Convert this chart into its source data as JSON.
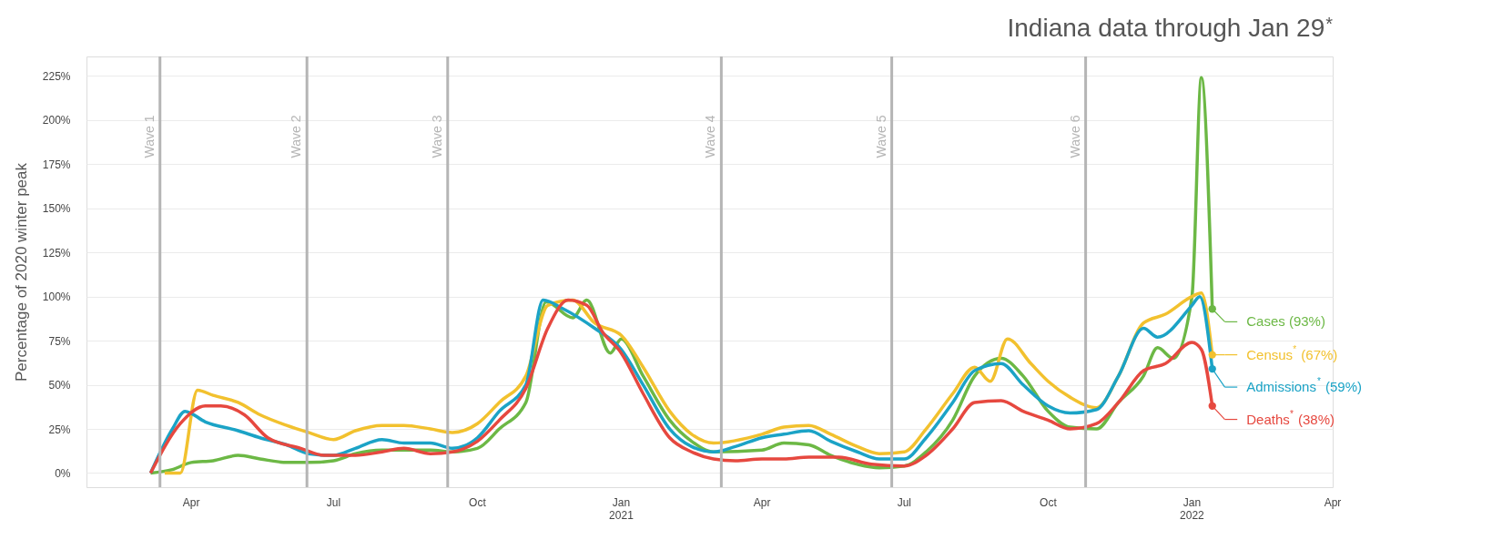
{
  "chart_data": {
    "type": "line",
    "title": "Indiana data through Jan 29$^{*}$",
    "ylabel": "Percentage of 2020 winter peak",
    "xlim": [
      "2020-01-25",
      "2022-04-01"
    ],
    "xticks": [
      {
        "value": "2020-04-01",
        "label": "Apr"
      },
      {
        "value": "2020-07-01",
        "label": "Jul"
      },
      {
        "value": "2020-10-01",
        "label": "Oct"
      },
      {
        "value": "2021-01-01",
        "label": "Jan 2021"
      },
      {
        "value": "2021-04-01",
        "label": "Apr"
      },
      {
        "value": "2021-07-01",
        "label": "Jul"
      },
      {
        "value": "2021-10-01",
        "label": "Oct"
      },
      {
        "value": "2022-01-01",
        "label": "Jan 2022"
      },
      {
        "value": "2022-04-01",
        "label": "Apr"
      }
    ],
    "ylim": [
      -8,
      236
    ],
    "yticks": [
      {
        "value": 0,
        "label": "0%"
      },
      {
        "value": 25,
        "label": "25%"
      },
      {
        "value": 50,
        "label": "50%"
      },
      {
        "value": 75,
        "label": "75%"
      },
      {
        "value": 100,
        "label": "100%"
      },
      {
        "value": 125,
        "label": "125%"
      },
      {
        "value": 150,
        "label": "150%"
      },
      {
        "value": 175,
        "label": "175%"
      },
      {
        "value": 200,
        "label": "200%"
      },
      {
        "value": 225,
        "label": "225%"
      }
    ],
    "grid": "y",
    "legend": "right",
    "marker": "none",
    "line_style": "solid",
    "ref_lines": [
      {
        "axis": "x",
        "value": "2020-03-12",
        "label": "Wave 1",
        "color": "#b5b5b5"
      },
      {
        "axis": "x",
        "value": "2020-06-14",
        "label": "Wave 2",
        "color": "#b5b5b5"
      },
      {
        "axis": "x",
        "value": "2020-09-12",
        "label": "Wave 3",
        "color": "#b5b5b5"
      },
      {
        "axis": "x",
        "value": "2021-03-06",
        "label": "Wave 4",
        "color": "#b5b5b5"
      },
      {
        "axis": "x",
        "value": "2021-06-23",
        "label": "Wave 5",
        "color": "#b5b5b5"
      },
      {
        "axis": "x",
        "value": "2021-10-25",
        "label": "Wave 6",
        "color": "#b5b5b5"
      }
    ],
    "series": [
      {
        "name": "Cases (93%)",
        "color": "#6cb845",
        "x": [
          "2020-03-06",
          "2020-03-20",
          "2020-04-01",
          "2020-04-15",
          "2020-05-01",
          "2020-05-15",
          "2020-06-01",
          "2020-06-15",
          "2020-07-01",
          "2020-07-15",
          "2020-08-01",
          "2020-08-15",
          "2020-09-01",
          "2020-09-15",
          "2020-10-01",
          "2020-10-15",
          "2020-11-01",
          "2020-11-14",
          "2020-12-01",
          "2020-12-10",
          "2020-12-25",
          "2021-01-01",
          "2021-01-15",
          "2021-02-01",
          "2021-02-15",
          "2021-03-01",
          "2021-04-01",
          "2021-04-15",
          "2021-05-01",
          "2021-05-15",
          "2021-06-01",
          "2021-06-15",
          "2021-07-01",
          "2021-07-15",
          "2021-08-01",
          "2021-08-15",
          "2021-09-01",
          "2021-09-15",
          "2021-10-01",
          "2021-10-15",
          "2021-11-01",
          "2021-11-15",
          "2021-12-01",
          "2021-12-10",
          "2021-12-20",
          "2022-01-01",
          "2022-01-07",
          "2022-01-14"
        ],
        "values": [
          0,
          2,
          6,
          7,
          10,
          8,
          6,
          6,
          7,
          11,
          13,
          13,
          13,
          12,
          14,
          25,
          40,
          97,
          88,
          98,
          68,
          76,
          55,
          30,
          18,
          12,
          13,
          17,
          16,
          10,
          5,
          3,
          4,
          12,
          30,
          55,
          65,
          55,
          35,
          26,
          25,
          40,
          55,
          71,
          65,
          100,
          224,
          93
        ]
      },
      {
        "name": "Census$^{*}$ (67%)",
        "color": "#f2c12e",
        "x": [
          "2020-03-15",
          "2020-03-25",
          "2020-04-05",
          "2020-04-15",
          "2020-05-01",
          "2020-05-15",
          "2020-06-01",
          "2020-06-15",
          "2020-07-01",
          "2020-07-15",
          "2020-08-01",
          "2020-08-15",
          "2020-09-01",
          "2020-09-15",
          "2020-10-01",
          "2020-10-15",
          "2020-11-01",
          "2020-11-15",
          "2020-12-01",
          "2020-12-15",
          "2021-01-01",
          "2021-01-15",
          "2021-02-01",
          "2021-02-15",
          "2021-03-01",
          "2021-04-01",
          "2021-04-15",
          "2021-05-01",
          "2021-05-15",
          "2021-06-01",
          "2021-06-15",
          "2021-07-01",
          "2021-07-15",
          "2021-08-01",
          "2021-08-15",
          "2021-08-25",
          "2021-09-05",
          "2021-09-20",
          "2021-10-01",
          "2021-10-15",
          "2021-11-01",
          "2021-11-15",
          "2021-12-01",
          "2021-12-15",
          "2022-01-01",
          "2022-01-07",
          "2022-01-14"
        ],
        "values": [
          0,
          0,
          47,
          44,
          40,
          33,
          27,
          23,
          19,
          24,
          27,
          27,
          25,
          23,
          28,
          40,
          55,
          95,
          98,
          85,
          78,
          60,
          35,
          22,
          17,
          22,
          26,
          27,
          22,
          15,
          11,
          12,
          25,
          45,
          60,
          52,
          76,
          62,
          52,
          43,
          37,
          55,
          85,
          90,
          100,
          102,
          67
        ]
      },
      {
        "name": "Admissions$^{*}$ (59%)",
        "color": "#1ba3c6",
        "x": [
          "2020-03-06",
          "2020-03-20",
          "2020-03-28",
          "2020-04-10",
          "2020-05-01",
          "2020-05-15",
          "2020-06-01",
          "2020-06-15",
          "2020-07-01",
          "2020-07-15",
          "2020-08-01",
          "2020-08-15",
          "2020-09-01",
          "2020-09-15",
          "2020-10-01",
          "2020-10-15",
          "2020-11-01",
          "2020-11-12",
          "2020-11-25",
          "2020-12-15",
          "2021-01-01",
          "2021-01-15",
          "2021-02-01",
          "2021-02-15",
          "2021-03-01",
          "2021-03-15",
          "2021-04-01",
          "2021-04-15",
          "2021-05-01",
          "2021-05-15",
          "2021-06-01",
          "2021-06-15",
          "2021-07-01",
          "2021-07-15",
          "2021-08-01",
          "2021-08-15",
          "2021-09-01",
          "2021-09-15",
          "2021-10-01",
          "2021-10-15",
          "2021-11-01",
          "2021-11-15",
          "2021-12-01",
          "2021-12-10",
          "2022-01-01",
          "2022-01-06",
          "2022-01-14"
        ],
        "values": [
          0,
          25,
          35,
          29,
          24,
          20,
          16,
          11,
          10,
          14,
          19,
          17,
          17,
          14,
          20,
          35,
          50,
          98,
          93,
          82,
          70,
          50,
          25,
          15,
          12,
          15,
          20,
          22,
          24,
          18,
          12,
          8,
          8,
          20,
          40,
          58,
          62,
          50,
          38,
          34,
          36,
          55,
          82,
          77,
          95,
          100,
          59
        ]
      },
      {
        "name": "Deaths$^{*}$ (38%)",
        "color": "#e6483f",
        "x": [
          "2020-03-06",
          "2020-03-25",
          "2020-04-10",
          "2020-04-20",
          "2020-05-05",
          "2020-05-20",
          "2020-06-10",
          "2020-06-25",
          "2020-07-15",
          "2020-08-01",
          "2020-08-15",
          "2020-09-01",
          "2020-09-15",
          "2020-10-01",
          "2020-10-15",
          "2020-11-01",
          "2020-11-15",
          "2020-11-28",
          "2020-12-10",
          "2020-12-20",
          "2021-01-01",
          "2021-01-15",
          "2021-02-01",
          "2021-02-15",
          "2021-03-01",
          "2021-03-15",
          "2021-04-01",
          "2021-04-15",
          "2021-05-01",
          "2021-05-20",
          "2021-06-10",
          "2021-07-01",
          "2021-07-15",
          "2021-08-01",
          "2021-08-15",
          "2021-09-01",
          "2021-09-15",
          "2021-10-01",
          "2021-10-15",
          "2021-11-01",
          "2021-11-15",
          "2021-12-01",
          "2021-12-15",
          "2022-01-01",
          "2022-01-07",
          "2022-01-14"
        ],
        "values": [
          0,
          28,
          38,
          38,
          33,
          20,
          14,
          10,
          10,
          12,
          14,
          11,
          12,
          18,
          30,
          48,
          82,
          98,
          95,
          80,
          68,
          45,
          20,
          12,
          8,
          7,
          8,
          8,
          9,
          9,
          5,
          4,
          10,
          25,
          40,
          41,
          35,
          30,
          25,
          28,
          40,
          58,
          62,
          74,
          70,
          38
        ]
      }
    ]
  }
}
